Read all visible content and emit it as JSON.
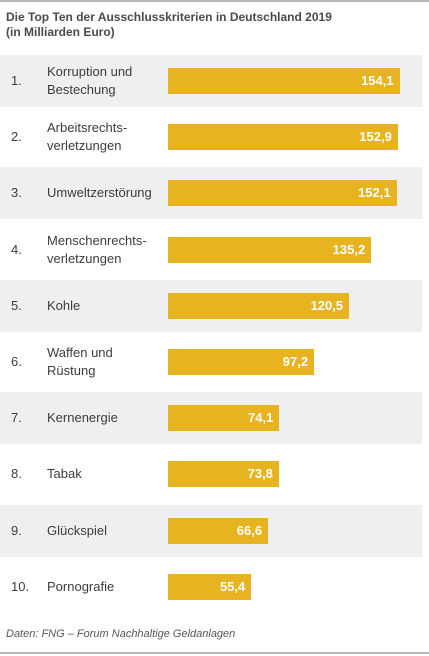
{
  "chart_data": {
    "type": "bar",
    "orientation": "horizontal",
    "title": "Die Top Ten der Ausschlusskriterien in Deutschland 2019",
    "subtitle": "(in Milliarden Euro)",
    "ranks": [
      "1.",
      "2.",
      "3.",
      "4.",
      "5.",
      "6.",
      "7.",
      "8.",
      "9.",
      "10."
    ],
    "categories": [
      "Korruption und Bestechung",
      "Arbeitsrechts-verletzungen",
      "Umweltzerstörung",
      "Menschenrechts-verletzungen",
      "Kohle",
      "Waffen und Rüstung",
      "Kernenergie",
      "Tabak",
      "Glückspiel",
      "Pornografie"
    ],
    "category_lines": [
      [
        "Korruption und",
        "Bestechung"
      ],
      [
        "Arbeitsrechts-",
        "verletzungen"
      ],
      [
        "Umweltzerstörung"
      ],
      [
        "Menschenrechts-",
        "verletzungen"
      ],
      [
        "Kohle"
      ],
      [
        "Waffen und",
        "Rüstung"
      ],
      [
        "Kernenergie"
      ],
      [
        "Tabak"
      ],
      [
        "Glückspiel"
      ],
      [
        "Pornografie"
      ]
    ],
    "values": [
      154.1,
      152.9,
      152.1,
      135.2,
      120.5,
      97.2,
      74.1,
      73.8,
      66.6,
      55.4
    ],
    "value_labels": [
      "154,1",
      "152,9",
      "152,1",
      "135,2",
      "120,5",
      "97,2",
      "74,1",
      "73,8",
      "66,6",
      "55,4"
    ],
    "bar_color": "#e8b321",
    "row_shading": "#efefef",
    "xlim": [
      0,
      165
    ],
    "grid": false,
    "legend": "none"
  },
  "source": "Daten: FNG – Forum Nachhaltige Geldanlagen"
}
